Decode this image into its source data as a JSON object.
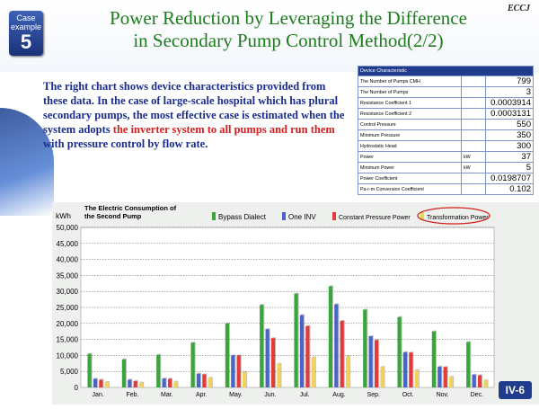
{
  "header": {
    "case_label": "Case example",
    "case_number": "5",
    "logo": "ECCJ",
    "title_line1": "Power Reduction by Leveraging the Difference",
    "title_line2": "in Secondary Pump Control Method(2/2)"
  },
  "description": {
    "part1": "The right chart shows device characteristics provided from these data. In the case of large-scale hospital which has plural secondary pumps, the most effective case is estimated when the system adopts ",
    "highlight": "the inverter system to all pumps and run them",
    "part2": " with pressure control by flow rate."
  },
  "spec_table": {
    "header": "Device Characteristic",
    "rows": [
      {
        "label": "The Number of Pumps CMH",
        "unit": "",
        "value": "799"
      },
      {
        "label": "The Number of Pumps",
        "unit": "",
        "value": "3"
      },
      {
        "label": "Resistance Coefficient 1",
        "unit": "",
        "value": "0.0003914"
      },
      {
        "label": "Resistance Coefficient 2",
        "unit": "",
        "value": "0.0003131"
      },
      {
        "label": "Control Pressure",
        "unit": "",
        "value": "550"
      },
      {
        "label": "Minimum Pressure",
        "unit": "",
        "value": "350"
      },
      {
        "label": "Hydrostatic Head",
        "unit": "",
        "value": "300"
      },
      {
        "label": "Power",
        "unit": "kW",
        "value": "37"
      },
      {
        "label": "Minimum Power",
        "unit": "kW",
        "value": "5"
      },
      {
        "label": "Power Coefficient",
        "unit": "",
        "value": "0.0198707"
      },
      {
        "label": "Pa-r-m Conversion Coefficient",
        "unit": "",
        "value": "0.102"
      }
    ]
  },
  "footer": {
    "page_label": "IV-6"
  },
  "chart_data": {
    "type": "bar",
    "title": "The Electric Consumption of the Second Pump",
    "ylabel": "kWh",
    "ylim": [
      0,
      50000
    ],
    "yticks": [
      "0",
      "5,000",
      "10,000",
      "15,000",
      "20,000",
      "25,000",
      "30,000",
      "35,000",
      "40,000",
      "45,000",
      "50,000"
    ],
    "grid": true,
    "legend_position": "top",
    "categories": [
      "Jan.",
      "Feb.",
      "Mar.",
      "Apr.",
      "May.",
      "Jun.",
      "Jul.",
      "Aug.",
      "Sep.",
      "Oct.",
      "Nov.",
      "Dec."
    ],
    "series": [
      {
        "name": "Bypass Dialect",
        "color": "#3aa53a",
        "values": [
          10500,
          8800,
          10200,
          14000,
          20000,
          25800,
          29300,
          31600,
          24300,
          22000,
          17500,
          14200
        ]
      },
      {
        "name": "One INV",
        "color": "#4a64c8",
        "values": [
          2700,
          2400,
          2800,
          4300,
          10000,
          18200,
          22600,
          26000,
          16000,
          11000,
          6500,
          4000
        ]
      },
      {
        "name": "Constant Pressure Power",
        "color": "#e03c3c",
        "values": [
          2400,
          2000,
          2700,
          4100,
          10000,
          15400,
          19200,
          20800,
          14800,
          10900,
          6400,
          3800
        ]
      },
      {
        "name": "Transformation Power",
        "color": "#f2d35a",
        "values": [
          1700,
          1500,
          1800,
          3000,
          4800,
          7400,
          9400,
          9700,
          6400,
          5400,
          3300,
          2200
        ]
      }
    ]
  }
}
